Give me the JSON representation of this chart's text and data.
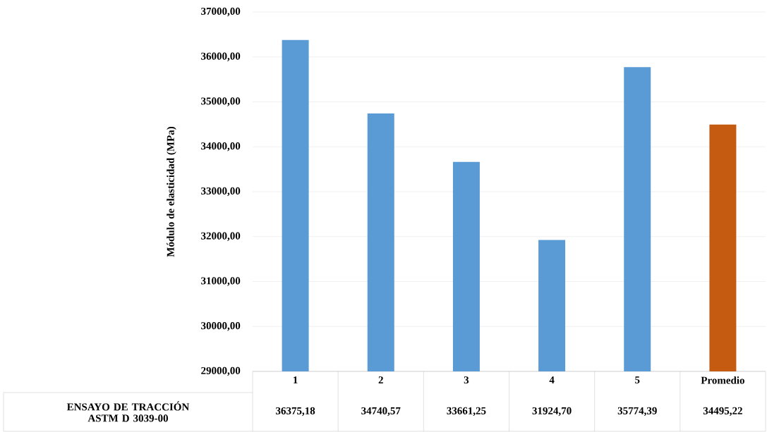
{
  "chart_data": {
    "type": "bar",
    "ylabel": "Módulo de elasticidad  (MPa)",
    "categories": [
      "1",
      "2",
      "3",
      "4",
      "5",
      "Promedio"
    ],
    "series": [
      {
        "name": "ENSAYO DE TRACCIÓN  ASTM D 3039-00",
        "values": [
          36375.18,
          34740.57,
          33661.25,
          31924.7,
          35774.39,
          34495.22
        ],
        "colors": [
          "#5b9bd5",
          "#5b9bd5",
          "#5b9bd5",
          "#5b9bd5",
          "#5b9bd5",
          "#c55a11"
        ],
        "value_labels": [
          "36375,18",
          "34740,57",
          "33661,25",
          "31924,70",
          "35774,39",
          "34495,22"
        ]
      }
    ],
    "ylim": [
      29000,
      37000
    ],
    "yticks": [
      {
        "value": 29000,
        "label": "29000,00"
      },
      {
        "value": 30000,
        "label": "30000,00"
      },
      {
        "value": 31000,
        "label": "31000,00"
      },
      {
        "value": 32000,
        "label": "32000,00"
      },
      {
        "value": 33000,
        "label": "33000,00"
      },
      {
        "value": 34000,
        "label": "34000,00"
      },
      {
        "value": 35000,
        "label": "35000,00"
      },
      {
        "value": 36000,
        "label": "36000,00"
      },
      {
        "value": 37000,
        "label": "37000,00"
      }
    ],
    "grid": "y"
  }
}
